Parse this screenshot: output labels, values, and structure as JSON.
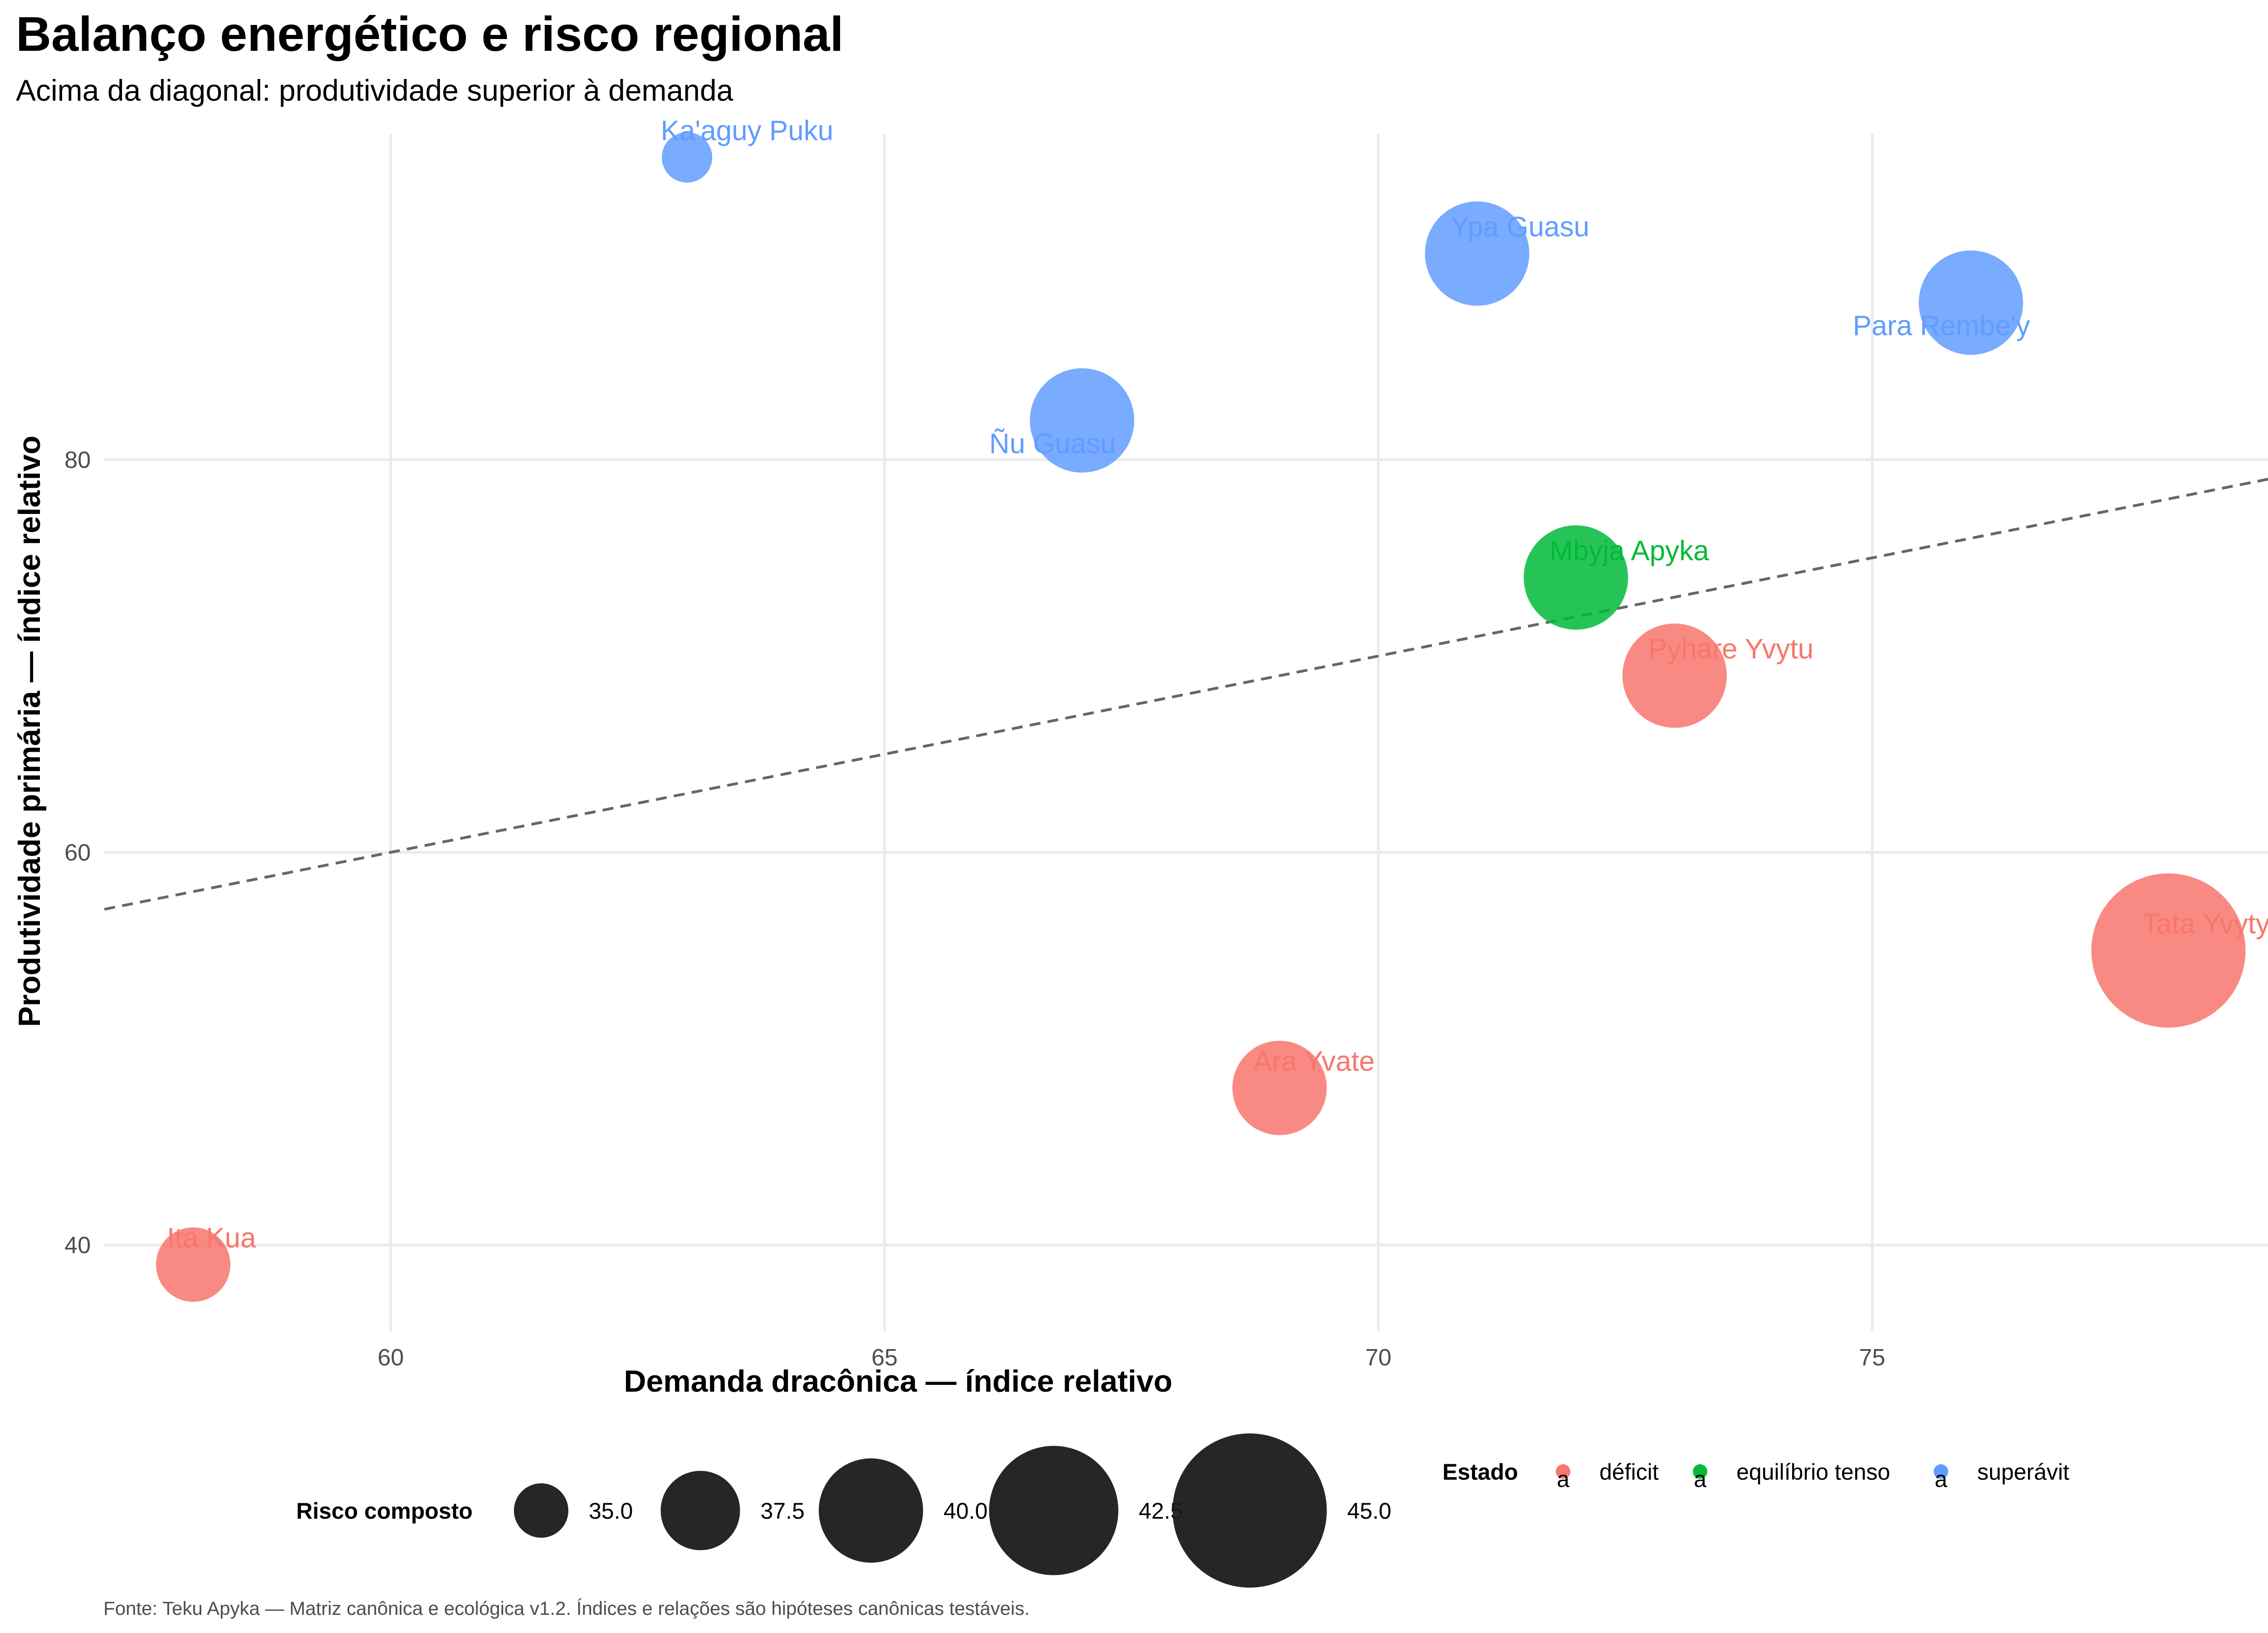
{
  "chart_data": {
    "type": "scatter",
    "title": "Balanço energético e risco regional",
    "subtitle": "Acima da diagonal: produtividade superior à demanda",
    "xlabel": "Demanda dracônica — índice relativo",
    "ylabel": "Produtividade primária — índice relativo",
    "caption": "Fonte: Teku Apyka — Matriz canônica e ecológica v1.2. Índices e relações são hipóteses canônicas testáveis.",
    "xlim": [
      57.1,
      79.1
    ],
    "ylim": [
      35.6,
      96.6
    ],
    "x_ticks": [
      60,
      65,
      70,
      75
    ],
    "y_ticks": [
      40,
      60,
      80
    ],
    "grid": true,
    "reference_line": "y = x",
    "colors": {
      "déficit": "#F8766D",
      "equilíbrio tenso": "#00BA38",
      "superávit": "#619CFF"
    },
    "points": [
      {
        "name": "Ita Kua",
        "x": 58.0,
        "y": 39.0,
        "risk": 37.0,
        "estado": "déficit",
        "label_dx": 0,
        "label_dy": 1
      },
      {
        "name": "Ka'aguy Puku",
        "x": 63.0,
        "y": 95.4,
        "risk": 34.6,
        "estado": "superávit",
        "label_dx": 0,
        "label_dy": 1
      },
      {
        "name": "Ñu Guasu",
        "x": 67.0,
        "y": 82.0,
        "risk": 40.0,
        "estado": "superávit",
        "label_dx": -1,
        "label_dy": -1
      },
      {
        "name": "Ara Yvate",
        "x": 69.0,
        "y": 48.0,
        "risk": 39.0,
        "estado": "déficit",
        "label_dx": 0,
        "label_dy": 1
      },
      {
        "name": "Ypa Guasu",
        "x": 71.0,
        "y": 90.5,
        "risk": 40.0,
        "estado": "superávit",
        "label_dx": 0,
        "label_dy": 1
      },
      {
        "name": "Mbyja Apyka",
        "x": 72.0,
        "y": 74.0,
        "risk": 40.0,
        "estado": "equilíbrio tenso",
        "label_dx": 0,
        "label_dy": 1
      },
      {
        "name": "Pyhare Yvytu",
        "x": 73.0,
        "y": 69.0,
        "risk": 40.0,
        "estado": "déficit",
        "label_dx": 0,
        "label_dy": 1
      },
      {
        "name": "Para Rembe'y",
        "x": 76.0,
        "y": 88.0,
        "risk": 40.0,
        "estado": "superávit",
        "label_dx": -1,
        "label_dy": -1
      },
      {
        "name": "Tata Yvyty",
        "x": 78.0,
        "y": 55.0,
        "risk": 45.0,
        "estado": "déficit",
        "label_dx": 0,
        "label_dy": 1
      }
    ],
    "size_legend": {
      "title": "Risco composto",
      "values": [
        35.0,
        37.5,
        40.0,
        42.5,
        45.0
      ],
      "labels": [
        "35.0",
        "37.5",
        "40.0",
        "42.5",
        "45.0"
      ]
    },
    "color_legend": {
      "title": "Estado",
      "entries": [
        "déficit",
        "equilíbrio tenso",
        "superávit"
      ],
      "key_glyph": "a"
    }
  }
}
